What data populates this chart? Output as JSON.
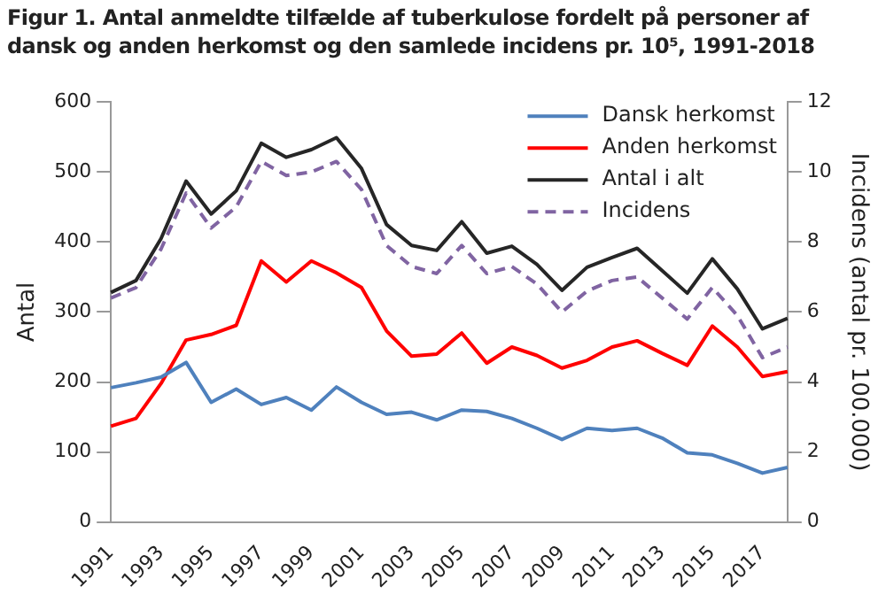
{
  "chart_data": {
    "type": "line",
    "title": "Figur 1. Antal anmeldte tilfælde af tuberkulose fordelt på personer af dansk og anden herkomst og den samlede incidens pr. 10⁵, 1991-2018",
    "ylabel": "Antal",
    "y2label": "Incidens (antal pr. 100.000)",
    "categories": [
      "1991",
      null,
      "1993",
      null,
      "1995",
      null,
      "1997",
      null,
      "1999",
      null,
      "2001",
      null,
      "2003",
      null,
      "2005",
      null,
      "2007",
      null,
      "2009",
      null,
      "2011",
      null,
      "2013",
      null,
      "2015",
      null,
      "2017",
      null
    ],
    "series": [
      {
        "name": "Dansk herkomst",
        "color": "#4f81bd",
        "values": [
          192,
          199,
          207,
          228,
          171,
          190,
          168,
          178,
          160,
          193,
          171,
          154,
          157,
          146,
          160,
          158,
          148,
          134,
          118,
          134,
          131,
          134,
          120,
          99,
          96,
          84,
          70,
          78
        ]
      },
      {
        "name": "Anden herkomst",
        "color": "#ff0000",
        "values": [
          137,
          148,
          198,
          260,
          268,
          281,
          373,
          343,
          373,
          356,
          335,
          273,
          237,
          240,
          270,
          227,
          250,
          238,
          220,
          231,
          250,
          259,
          241,
          224,
          280,
          250,
          208,
          215
        ]
      },
      {
        "name": "Antal i alt",
        "color": "#262626",
        "values": [
          328,
          345,
          405,
          487,
          440,
          473,
          541,
          521,
          532,
          549,
          505,
          425,
          395,
          388,
          429,
          384,
          394,
          368,
          331,
          364,
          378,
          391,
          359,
          327,
          376,
          333,
          276,
          291
        ]
      },
      {
        "name": "Incidens",
        "color": "#8064a2",
        "axis": "y2",
        "line_style": "dashed",
        "values": [
          6.4,
          6.7,
          7.8,
          9.4,
          8.4,
          9.0,
          10.3,
          9.9,
          10.0,
          10.3,
          9.5,
          7.9,
          7.3,
          7.1,
          7.9,
          7.1,
          7.3,
          6.8,
          6.0,
          6.6,
          6.9,
          7.0,
          6.4,
          5.8,
          6.7,
          5.9,
          4.7,
          5.0
        ]
      }
    ],
    "ylim": [
      0,
      600
    ],
    "yticks": [
      0,
      100,
      200,
      300,
      400,
      500,
      600
    ],
    "y2lim": [
      0,
      12
    ],
    "y2ticks": [
      0,
      2,
      4,
      6,
      8,
      10,
      12
    ],
    "grid": false,
    "legend": "top right",
    "marker": "none",
    "line_style": "solid"
  }
}
